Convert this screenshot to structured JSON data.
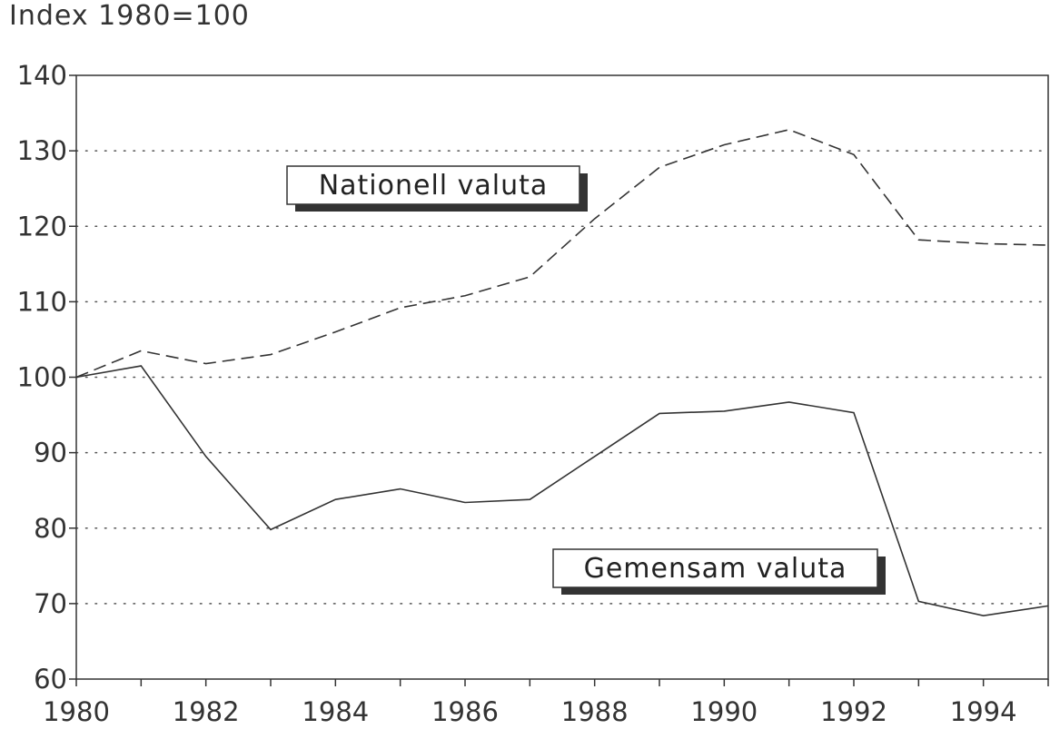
{
  "chart_data": {
    "type": "line",
    "title": "",
    "ylabel": "Index 1980=100",
    "xlabel": "",
    "ylim": [
      60,
      140
    ],
    "xlim": [
      1980,
      1995
    ],
    "yticks": [
      60,
      70,
      80,
      90,
      100,
      110,
      120,
      130,
      140
    ],
    "xticks": [
      1980,
      1982,
      1984,
      1986,
      1988,
      1990,
      1992,
      1994
    ],
    "grid": "horizontal dotted",
    "x": [
      1980,
      1981,
      1982,
      1983,
      1984,
      1985,
      1986,
      1987,
      1988,
      1989,
      1990,
      1991,
      1992,
      1993,
      1994,
      1995
    ],
    "series": [
      {
        "name": "Nationell valuta",
        "style": "dashed",
        "values": [
          100,
          103.5,
          101.8,
          103,
          106,
          109.2,
          110.8,
          113.3,
          121,
          127.8,
          130.8,
          132.8,
          129.5,
          118.2,
          117.7,
          117.5
        ]
      },
      {
        "name": "Gemensam valuta",
        "style": "solid",
        "values": [
          100,
          101.5,
          89.5,
          79.8,
          83.8,
          85.2,
          83.4,
          83.8,
          89.5,
          95.2,
          95.5,
          96.7,
          95.3,
          70.3,
          68.4,
          69.7
        ]
      }
    ]
  }
}
